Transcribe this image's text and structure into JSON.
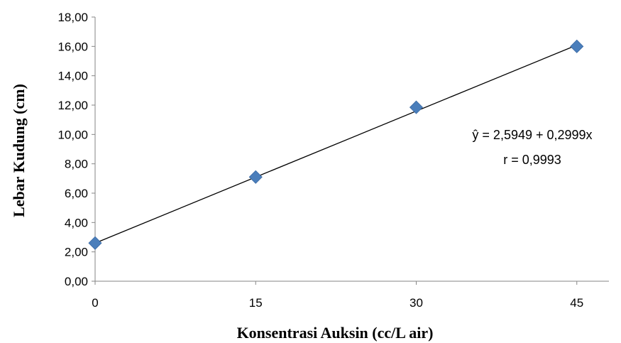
{
  "chart_data": {
    "type": "scatter",
    "title": "",
    "xlabel": "Konsentrasi Auksin (cc/L air)",
    "ylabel": "Lebar Kudung (cm)",
    "x_ticks": [
      "0",
      "15",
      "30",
      "45"
    ],
    "y_ticks": [
      "0,00",
      "2,00",
      "4,00",
      "6,00",
      "8,00",
      "10,00",
      "12,00",
      "14,00",
      "16,00",
      "18,00"
    ],
    "xlim": [
      0,
      48
    ],
    "ylim": [
      0,
      18
    ],
    "grid": false,
    "legend": "none",
    "series": [
      {
        "x": [
          0,
          15,
          30,
          45
        ],
        "y": [
          2.6,
          7.1,
          11.85,
          16.0
        ],
        "marker": "diamond",
        "color": "#4a7ebb"
      }
    ],
    "trendline": {
      "intercept": 2.5949,
      "slope": 0.2999,
      "color": "#000000"
    },
    "annotations": [
      "ŷ = 2,5949 + 0,2999x",
      "r = 0,9993"
    ]
  }
}
